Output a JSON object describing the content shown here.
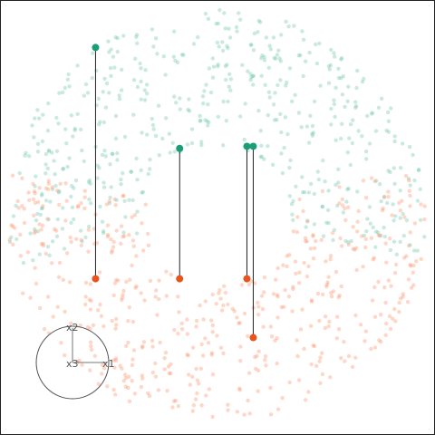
{
  "chart_data": {
    "type": "scatter",
    "title": "",
    "xlabel": "",
    "ylabel": "",
    "xlim": [
      -1,
      1
    ],
    "ylim": [
      -1,
      1
    ],
    "grid": false,
    "legend": "none",
    "ring": {
      "inner_radius": 0.34,
      "outer_radius": 1.0,
      "points_per_series": 520
    },
    "series": [
      {
        "color": "#66c2a5",
        "points_alpha": 0.35,
        "region": "upper"
      },
      {
        "color": "#fc8d62",
        "points_alpha": 0.35,
        "region": "lower"
      }
    ],
    "highlight_pairs": [
      {
        "from": [
          -0.58,
          0.8
        ],
        "to": [
          -0.58,
          -0.3
        ],
        "from_color": "#1b9e77",
        "to_color": "#e7541e"
      },
      {
        "from": [
          -0.18,
          0.32
        ],
        "to": [
          -0.18,
          -0.3
        ],
        "from_color": "#1b9e77",
        "to_color": "#e7541e"
      },
      {
        "from": [
          0.14,
          0.33
        ],
        "to": [
          0.14,
          -0.3
        ],
        "from_color": "#1b9e77",
        "to_color": "#e7541e"
      },
      {
        "from": [
          0.17,
          0.33
        ],
        "to": [
          0.17,
          -0.58
        ],
        "from_color": "#1b9e77",
        "to_color": "#e7541e"
      }
    ],
    "orientation_widget": {
      "labels": [
        "x1",
        "x2",
        "x3"
      ],
      "circle_color": "#555555",
      "placement": "bottom-left"
    }
  }
}
